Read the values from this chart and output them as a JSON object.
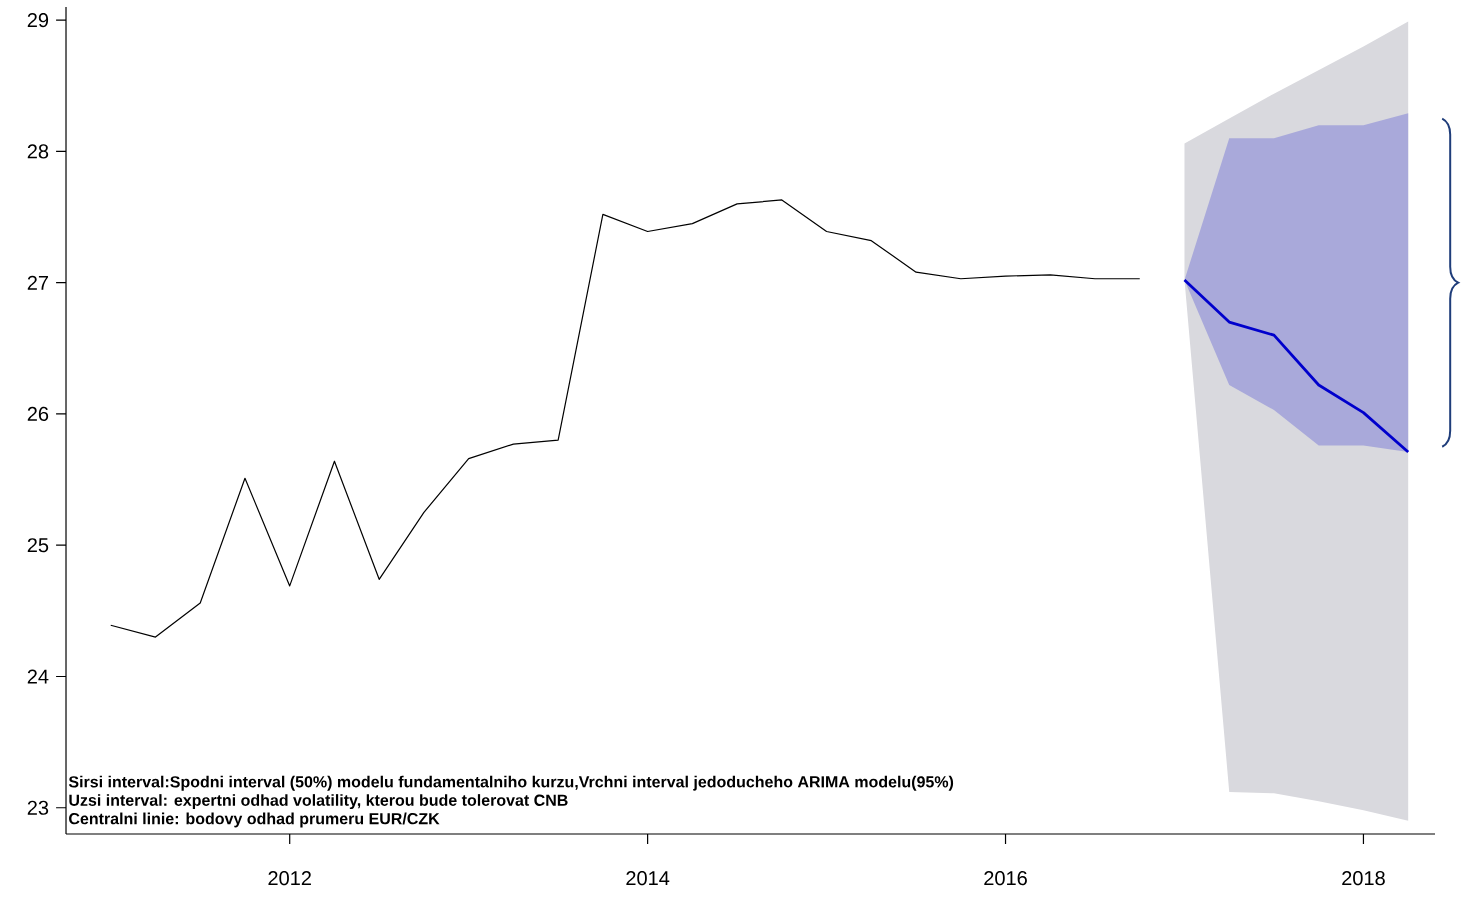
{
  "chart_data": {
    "type": "line",
    "annotations": [
      "Sirsi interval:Spodni interval (50%) modelu fundamentalniho kurzu,Vrchni interval jedoducheho ARIMA modelu(95%)",
      "Uzsi interval: expertni odhad volatility, kterou bude tolerovat CNB",
      "Centralni linie: bodovy odhad prumeru EUR/CZK"
    ],
    "xlim": [
      2010.75,
      2018.4
    ],
    "ylim": [
      22.8,
      29.1
    ],
    "xticks": [
      2012,
      2014,
      2016,
      2018
    ],
    "yticks": [
      23,
      24,
      25,
      26,
      27,
      28,
      29
    ],
    "series": [
      {
        "color": "#000000",
        "x": [
          2011.0,
          2011.25,
          2011.5,
          2011.75,
          2012.0,
          2012.25,
          2012.5,
          2012.75,
          2013.0,
          2013.25,
          2013.5,
          2013.75,
          2014.0,
          2014.25,
          2014.5,
          2014.75,
          2015.0,
          2015.25,
          2015.5,
          2015.75,
          2016.0,
          2016.25,
          2016.5,
          2016.75
        ],
        "values": [
          24.39,
          24.3,
          24.56,
          25.51,
          24.69,
          25.64,
          24.74,
          25.25,
          25.66,
          25.77,
          25.8,
          27.52,
          27.39,
          27.45,
          27.6,
          27.63,
          27.39,
          27.32,
          27.08,
          27.03,
          27.05,
          27.06,
          27.03,
          27.03
        ]
      },
      {
        "color": "#d9d9de",
        "x": [
          2017.0,
          2017.25,
          2017.5,
          2017.75,
          2018.0,
          2018.25
        ],
        "values": [
          null,
          null,
          null,
          null,
          null,
          null
        ],
        "lower": [
          27.02,
          23.12,
          23.11,
          23.05,
          22.98,
          22.9
        ],
        "upper": [
          28.06,
          28.25,
          28.44,
          28.62,
          28.8,
          28.99
        ]
      },
      {
        "color": "#0000cc",
        "x": [
          2017.0,
          2017.25,
          2017.5,
          2017.75,
          2018.0,
          2018.25
        ],
        "values": [
          27.02,
          26.7,
          26.6,
          26.22,
          26.01,
          25.71
        ],
        "lower": [
          27.02,
          26.22,
          26.03,
          25.76,
          25.76,
          25.71
        ],
        "upper": [
          27.02,
          28.1,
          28.1,
          28.2,
          28.2,
          28.29
        ]
      }
    ]
  }
}
